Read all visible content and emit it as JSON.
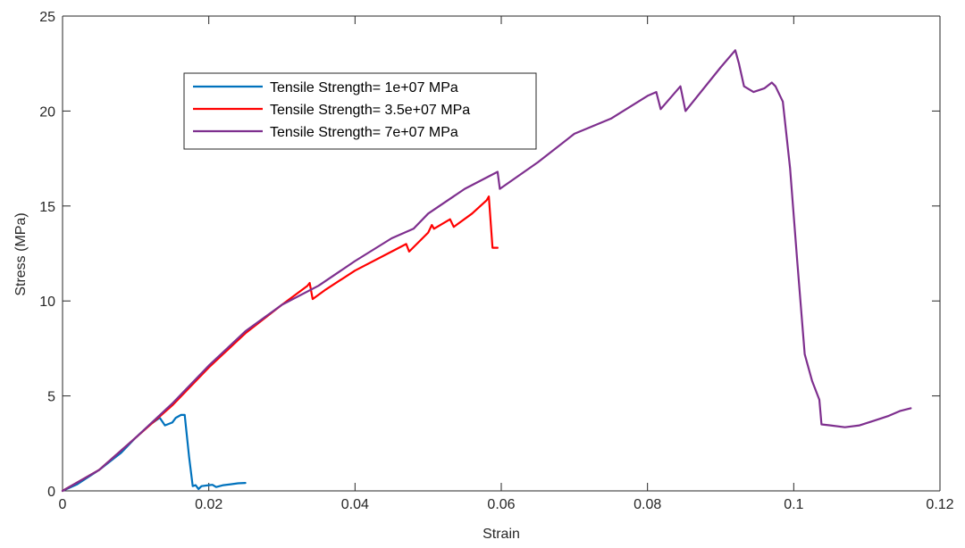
{
  "chart_data": {
    "type": "line",
    "title": "",
    "xlabel": "Strain",
    "ylabel": "Stress (MPa)",
    "xlim": [
      0,
      0.12
    ],
    "ylim": [
      0,
      25
    ],
    "xticks": [
      0,
      0.02,
      0.04,
      0.06,
      0.08,
      0.1,
      0.12
    ],
    "xtick_labels": [
      "0",
      "0.02",
      "0.04",
      "0.06",
      "0.08",
      "0.1",
      "0.12"
    ],
    "yticks": [
      0,
      5,
      10,
      15,
      20,
      25
    ],
    "ytick_labels": [
      "0",
      "5",
      "10",
      "15",
      "20",
      "25"
    ],
    "grid": false,
    "legend_position": "upper-left",
    "series": [
      {
        "name": "Tensile Strength= 1e+07 MPa",
        "color": "#0072BD",
        "points": [
          [
            0,
            0
          ],
          [
            0.002,
            0.35
          ],
          [
            0.005,
            1.1
          ],
          [
            0.008,
            2.0
          ],
          [
            0.01,
            2.8
          ],
          [
            0.012,
            3.5
          ],
          [
            0.0133,
            3.85
          ],
          [
            0.014,
            3.45
          ],
          [
            0.015,
            3.6
          ],
          [
            0.0155,
            3.85
          ],
          [
            0.0162,
            4.0
          ],
          [
            0.0167,
            4.0
          ],
          [
            0.0173,
            1.8
          ],
          [
            0.0178,
            0.25
          ],
          [
            0.0182,
            0.3
          ],
          [
            0.0186,
            0.1
          ],
          [
            0.019,
            0.25
          ],
          [
            0.02,
            0.3
          ],
          [
            0.0205,
            0.32
          ],
          [
            0.021,
            0.2
          ],
          [
            0.022,
            0.3
          ],
          [
            0.023,
            0.35
          ],
          [
            0.024,
            0.4
          ],
          [
            0.025,
            0.42
          ]
        ]
      },
      {
        "name": "Tensile Strength= 3.5e+07 MPa",
        "color": "#FF0000",
        "points": [
          [
            0,
            0
          ],
          [
            0.005,
            1.1
          ],
          [
            0.01,
            2.8
          ],
          [
            0.015,
            4.5
          ],
          [
            0.02,
            6.5
          ],
          [
            0.025,
            8.3
          ],
          [
            0.03,
            9.8
          ],
          [
            0.0335,
            10.8
          ],
          [
            0.0338,
            10.95
          ],
          [
            0.0342,
            10.1
          ],
          [
            0.036,
            10.6
          ],
          [
            0.04,
            11.6
          ],
          [
            0.045,
            12.6
          ],
          [
            0.047,
            13.0
          ],
          [
            0.0474,
            12.6
          ],
          [
            0.05,
            13.6
          ],
          [
            0.0505,
            14.0
          ],
          [
            0.0508,
            13.8
          ],
          [
            0.053,
            14.3
          ],
          [
            0.0535,
            13.9
          ],
          [
            0.056,
            14.6
          ],
          [
            0.058,
            15.3
          ],
          [
            0.0583,
            15.5
          ],
          [
            0.0588,
            12.8
          ],
          [
            0.0595,
            12.8
          ]
        ]
      },
      {
        "name": "Tensile Strength= 7e+07 MPa",
        "color": "#7E2F8E",
        "points": [
          [
            0,
            0
          ],
          [
            0.005,
            1.1
          ],
          [
            0.01,
            2.8
          ],
          [
            0.015,
            4.6
          ],
          [
            0.02,
            6.6
          ],
          [
            0.025,
            8.4
          ],
          [
            0.03,
            9.8
          ],
          [
            0.035,
            10.8
          ],
          [
            0.04,
            12.1
          ],
          [
            0.045,
            13.3
          ],
          [
            0.048,
            13.8
          ],
          [
            0.05,
            14.6
          ],
          [
            0.055,
            15.9
          ],
          [
            0.0595,
            16.8
          ],
          [
            0.0598,
            15.9
          ],
          [
            0.065,
            17.3
          ],
          [
            0.07,
            18.8
          ],
          [
            0.075,
            19.6
          ],
          [
            0.08,
            20.8
          ],
          [
            0.0812,
            21.0
          ],
          [
            0.0818,
            20.1
          ],
          [
            0.0845,
            21.3
          ],
          [
            0.0852,
            20.0
          ],
          [
            0.09,
            22.3
          ],
          [
            0.092,
            23.2
          ],
          [
            0.0925,
            22.5
          ],
          [
            0.0932,
            21.3
          ],
          [
            0.0945,
            21.0
          ],
          [
            0.096,
            21.2
          ],
          [
            0.097,
            21.5
          ],
          [
            0.0975,
            21.3
          ],
          [
            0.0985,
            20.5
          ],
          [
            0.0995,
            17.0
          ],
          [
            0.1005,
            12.0
          ],
          [
            0.1015,
            7.2
          ],
          [
            0.1025,
            5.8
          ],
          [
            0.1035,
            4.8
          ],
          [
            0.1038,
            3.5
          ],
          [
            0.105,
            3.45
          ],
          [
            0.107,
            3.35
          ],
          [
            0.109,
            3.45
          ],
          [
            0.111,
            3.7
          ],
          [
            0.113,
            3.95
          ],
          [
            0.1145,
            4.2
          ],
          [
            0.116,
            4.35
          ]
        ]
      }
    ]
  }
}
